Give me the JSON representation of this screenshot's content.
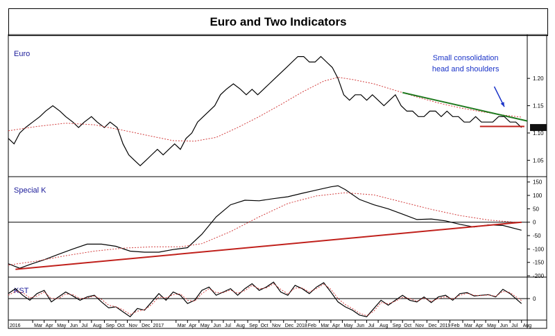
{
  "chart_data": {
    "type": "line",
    "title": "Euro and Two Indicators",
    "colors": {
      "price": "#000000",
      "ma": "#d23c3c",
      "trend_green": "#1f7a1f",
      "trend_red": "#c0201b",
      "annotation": "#1a33c8",
      "panel_label": "#1a1a99"
    },
    "x_axis": {
      "tick_labels": [
        "2016",
        "Mar",
        "Apr",
        "May",
        "Jun",
        "Jul",
        "Aug",
        "Sep",
        "Oct",
        "Nov",
        "Dec",
        "2017",
        "Mar",
        "Apr",
        "May",
        "Jun",
        "Jul",
        "Aug",
        "Sep",
        "Oct",
        "Nov",
        "Dec",
        "2018",
        "Feb",
        "Mar",
        "Apr",
        "May",
        "Jun",
        "Jul",
        "Aug",
        "Sep",
        "Oct",
        "Nov",
        "Dec",
        "2019",
        "Feb",
        "Mar",
        "Apr",
        "May",
        "Jun",
        "Jul",
        "Aug"
      ],
      "tick_pos": [
        2016.0,
        2016.17,
        2016.25,
        2016.33,
        2016.42,
        2016.5,
        2016.58,
        2016.67,
        2016.75,
        2016.83,
        2016.92,
        2017.0,
        2017.17,
        2017.25,
        2017.33,
        2017.42,
        2017.5,
        2017.58,
        2017.67,
        2017.75,
        2017.83,
        2017.92,
        2018.0,
        2018.08,
        2018.17,
        2018.25,
        2018.33,
        2018.42,
        2018.5,
        2018.58,
        2018.67,
        2018.75,
        2018.83,
        2018.92,
        2019.0,
        2019.08,
        2019.17,
        2019.25,
        2019.33,
        2019.42,
        2019.5,
        2019.58
      ],
      "range": [
        2016.0,
        2019.62
      ]
    },
    "panels": [
      {
        "id": "euro",
        "label": "Euro",
        "ylim": [
          1.02,
          1.27
        ],
        "y_ticks": [
          1.05,
          1.1,
          1.15,
          1.2
        ],
        "y_tick_labels": [
          "1.05",
          "1.10",
          "1.15",
          "1.20"
        ],
        "last_value_marker": 1.11,
        "series": [
          {
            "role": "price",
            "x": [
              2016.0,
              2016.04,
              2016.08,
              2016.12,
              2016.17,
              2016.22,
              2016.26,
              2016.31,
              2016.36,
              2016.4,
              2016.45,
              2016.49,
              2016.53,
              2016.58,
              2016.62,
              2016.67,
              2016.71,
              2016.76,
              2016.8,
              2016.84,
              2016.88,
              2016.92,
              2016.96,
              2017.0,
              2017.04,
              2017.08,
              2017.12,
              2017.16,
              2017.2,
              2017.24,
              2017.28,
              2017.32,
              2017.36,
              2017.4,
              2017.44,
              2017.48,
              2017.52,
              2017.57,
              2017.62,
              2017.66,
              2017.7,
              2017.74,
              2017.78,
              2017.82,
              2017.86,
              2017.9,
              2017.94,
              2017.98,
              2018.02,
              2018.06,
              2018.1,
              2018.14,
              2018.18,
              2018.22,
              2018.26,
              2018.3,
              2018.34,
              2018.38,
              2018.42,
              2018.46,
              2018.5,
              2018.54,
              2018.58,
              2018.62,
              2018.66,
              2018.7,
              2018.74,
              2018.78,
              2018.82,
              2018.86,
              2018.9,
              2018.94,
              2018.98,
              2019.02,
              2019.06,
              2019.1,
              2019.14,
              2019.18,
              2019.22,
              2019.26,
              2019.3,
              2019.34,
              2019.38,
              2019.42,
              2019.46,
              2019.5,
              2019.54,
              2019.58
            ],
            "y": [
              1.09,
              1.08,
              1.1,
              1.11,
              1.12,
              1.13,
              1.14,
              1.15,
              1.14,
              1.13,
              1.12,
              1.11,
              1.12,
              1.13,
              1.12,
              1.11,
              1.12,
              1.11,
              1.08,
              1.06,
              1.05,
              1.04,
              1.05,
              1.06,
              1.07,
              1.06,
              1.07,
              1.08,
              1.07,
              1.09,
              1.1,
              1.12,
              1.13,
              1.14,
              1.15,
              1.17,
              1.18,
              1.19,
              1.18,
              1.17,
              1.18,
              1.17,
              1.18,
              1.19,
              1.2,
              1.21,
              1.22,
              1.23,
              1.24,
              1.24,
              1.23,
              1.23,
              1.24,
              1.23,
              1.22,
              1.2,
              1.17,
              1.16,
              1.17,
              1.17,
              1.16,
              1.17,
              1.16,
              1.15,
              1.16,
              1.17,
              1.15,
              1.14,
              1.14,
              1.13,
              1.13,
              1.14,
              1.14,
              1.13,
              1.14,
              1.13,
              1.13,
              1.12,
              1.12,
              1.13,
              1.12,
              1.12,
              1.12,
              1.13,
              1.13,
              1.12,
              1.12,
              1.11
            ]
          },
          {
            "role": "moving-average",
            "x": [
              2016.0,
              2016.2,
              2016.4,
              2016.6,
              2016.8,
              2017.0,
              2017.15,
              2017.3,
              2017.45,
              2017.6,
              2017.75,
              2017.9,
              2018.05,
              2018.2,
              2018.3,
              2018.4,
              2018.55,
              2018.7,
              2018.85,
              2019.0,
              2019.15,
              2019.3,
              2019.45,
              2019.58
            ],
            "y": [
              1.104,
              1.112,
              1.118,
              1.115,
              1.105,
              1.094,
              1.086,
              1.085,
              1.092,
              1.11,
              1.13,
              1.152,
              1.175,
              1.195,
              1.202,
              1.198,
              1.19,
              1.178,
              1.166,
              1.155,
              1.146,
              1.139,
              1.133,
              1.129
            ]
          }
        ],
        "annotations": [
          {
            "text": "Small consolidation",
            "x": 2019.19,
            "y": 1.233
          },
          {
            "text": "head and shoulders",
            "x": 2019.19,
            "y": 1.213
          }
        ],
        "arrow": {
          "from": [
            2019.39,
            1.185
          ],
          "to": [
            2019.46,
            1.148
          ]
        },
        "trendlines": [
          {
            "role": "neckline-green",
            "x": [
              2018.75,
              2019.62
            ],
            "y": [
              1.174,
              1.122
            ]
          },
          {
            "role": "support-red",
            "x": [
              2019.29,
              2019.6
            ],
            "y": [
              1.112,
              1.112
            ]
          }
        ]
      },
      {
        "id": "special_k",
        "label": "Special K",
        "ylim": [
          -205,
          170
        ],
        "y_ticks": [
          150,
          100,
          50,
          0,
          -50,
          -100,
          -150,
          -200
        ],
        "y_tick_labels": [
          "150",
          "100",
          "50",
          "0",
          "-50",
          "-100",
          "-150",
          "-200"
        ],
        "zero_line": 0,
        "series": [
          {
            "role": "indicator",
            "x": [
              2016.0,
              2016.08,
              2016.15,
              2016.25,
              2016.35,
              2016.45,
              2016.55,
              2016.65,
              2016.75,
              2016.85,
              2016.95,
              2017.05,
              2017.15,
              2017.25,
              2017.35,
              2017.45,
              2017.55,
              2017.65,
              2017.75,
              2017.85,
              2017.95,
              2018.05,
              2018.15,
              2018.25,
              2018.3,
              2018.35,
              2018.45,
              2018.55,
              2018.65,
              2018.75,
              2018.85,
              2018.95,
              2019.05,
              2019.15,
              2019.25,
              2019.35,
              2019.45,
              2019.58
            ],
            "y": [
              -155,
              -172,
              -158,
              -140,
              -120,
              -100,
              -82,
              -82,
              -90,
              -108,
              -112,
              -112,
              -102,
              -95,
              -45,
              20,
              65,
              82,
              80,
              88,
              95,
              108,
              120,
              132,
              136,
              122,
              85,
              65,
              50,
              30,
              10,
              12,
              5,
              -8,
              -18,
              -10,
              -12,
              -30
            ]
          },
          {
            "role": "moving-average",
            "x": [
              2016.0,
              2016.2,
              2016.4,
              2016.6,
              2016.8,
              2017.0,
              2017.2,
              2017.35,
              2017.55,
              2017.75,
              2017.95,
              2018.15,
              2018.35,
              2018.55,
              2018.75,
              2018.95,
              2019.15,
              2019.35,
              2019.58
            ],
            "y": [
              -160,
              -145,
              -125,
              -108,
              -97,
              -92,
              -92,
              -80,
              -35,
              20,
              70,
              98,
              110,
              102,
              75,
              48,
              25,
              8,
              -2
            ]
          }
        ],
        "trendlines": [
          {
            "role": "uptrend-red",
            "x": [
              2016.05,
              2019.58
            ],
            "y": [
              -176,
              0
            ]
          }
        ]
      },
      {
        "id": "kst",
        "label": "KST",
        "ylim": [
          -65,
          65
        ],
        "y_ticks": [
          0
        ],
        "y_tick_labels": [
          "0"
        ],
        "zero_line": 0,
        "series": [
          {
            "role": "indicator",
            "x": [
              2016.0,
              2016.05,
              2016.1,
              2016.15,
              2016.2,
              2016.25,
              2016.3,
              2016.35,
              2016.4,
              2016.45,
              2016.5,
              2016.55,
              2016.6,
              2016.65,
              2016.7,
              2016.75,
              2016.8,
              2016.85,
              2016.9,
              2016.95,
              2017.0,
              2017.05,
              2017.1,
              2017.15,
              2017.2,
              2017.25,
              2017.3,
              2017.35,
              2017.4,
              2017.45,
              2017.5,
              2017.55,
              2017.6,
              2017.65,
              2017.7,
              2017.75,
              2017.8,
              2017.85,
              2017.9,
              2017.95,
              2018.0,
              2018.05,
              2018.1,
              2018.15,
              2018.2,
              2018.25,
              2018.3,
              2018.35,
              2018.4,
              2018.45,
              2018.5,
              2018.55,
              2018.6,
              2018.65,
              2018.7,
              2018.75,
              2018.8,
              2018.85,
              2018.9,
              2018.95,
              2019.0,
              2019.05,
              2019.1,
              2019.15,
              2019.2,
              2019.25,
              2019.3,
              2019.35,
              2019.4,
              2019.45,
              2019.5,
              2019.58
            ],
            "y": [
              15,
              30,
              10,
              -5,
              15,
              25,
              -10,
              5,
              20,
              8,
              -5,
              5,
              10,
              -10,
              -28,
              -25,
              -40,
              -55,
              -30,
              -35,
              -10,
              15,
              -5,
              20,
              10,
              -15,
              -5,
              25,
              35,
              10,
              20,
              30,
              10,
              30,
              45,
              25,
              35,
              50,
              20,
              10,
              40,
              30,
              15,
              35,
              48,
              20,
              -10,
              -25,
              -35,
              -50,
              -55,
              -30,
              -5,
              -20,
              -5,
              10,
              -5,
              -10,
              5,
              -12,
              5,
              10,
              -5,
              15,
              18,
              8,
              10,
              12,
              5,
              28,
              15,
              -15
            ]
          },
          {
            "role": "moving-average",
            "x": [
              2016.0,
              2016.05,
              2016.1,
              2016.15,
              2016.2,
              2016.25,
              2016.3,
              2016.35,
              2016.4,
              2016.45,
              2016.5,
              2016.55,
              2016.6,
              2016.65,
              2016.7,
              2016.75,
              2016.8,
              2016.85,
              2016.9,
              2016.95,
              2017.0,
              2017.05,
              2017.1,
              2017.15,
              2017.2,
              2017.25,
              2017.3,
              2017.35,
              2017.4,
              2017.45,
              2017.5,
              2017.55,
              2017.6,
              2017.65,
              2017.7,
              2017.75,
              2017.8,
              2017.85,
              2017.9,
              2017.95,
              2018.0,
              2018.05,
              2018.1,
              2018.15,
              2018.2,
              2018.25,
              2018.3,
              2018.35,
              2018.4,
              2018.45,
              2018.5,
              2018.55,
              2018.6,
              2018.65,
              2018.7,
              2018.75,
              2018.8,
              2018.85,
              2018.9,
              2018.95,
              2019.0,
              2019.05,
              2019.1,
              2019.15,
              2019.2,
              2019.25,
              2019.3,
              2019.35,
              2019.4,
              2019.45,
              2019.5,
              2019.58
            ],
            "y": [
              10,
              22,
              18,
              2,
              8,
              20,
              0,
              0,
              14,
              12,
              0,
              2,
              8,
              -2,
              -20,
              -25,
              -34,
              -48,
              -38,
              -34,
              -18,
              5,
              2,
              12,
              14,
              -5,
              -8,
              15,
              30,
              18,
              18,
              26,
              16,
              24,
              40,
              30,
              32,
              45,
              28,
              14,
              32,
              32,
              20,
              30,
              44,
              28,
              0,
              -18,
              -30,
              -44,
              -52,
              -38,
              -12,
              -16,
              -8,
              4,
              0,
              -8,
              2,
              -8,
              0,
              6,
              -2,
              10,
              16,
              10,
              9,
              11,
              7,
              22,
              18,
              -6
            ]
          }
        ]
      }
    ]
  }
}
